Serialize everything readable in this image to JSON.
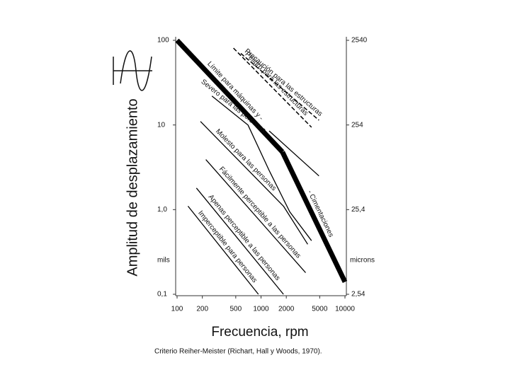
{
  "chart_data": {
    "type": "line",
    "y_title": "Amplitud de desplazamiento",
    "x_title": "Frecuencia, rpm",
    "caption": "Criterio Reiher-Meister (Richart, Hall y Woods, 1970).",
    "log_x": true,
    "log_y": true,
    "grid": false,
    "xlim": [
      100,
      10000
    ],
    "xticks": [
      100,
      200,
      500,
      1000,
      2000,
      5000,
      10000
    ],
    "ylim": [
      0.1,
      100
    ],
    "yticks": [
      100,
      10,
      {
        "value": 1,
        "label": "1,0"
      },
      {
        "value": 0.1,
        "label": "0,1"
      }
    ],
    "y_unit": "mils",
    "y2lim": [
      2.54,
      2540
    ],
    "y2ticks": [
      2540,
      254,
      {
        "value": 25.4,
        "label": "25,4"
      },
      {
        "value": 2.54,
        "label": "2,54"
      }
    ],
    "y2_unit": "microns",
    "series": [
      {
        "name": "Peligro para las estructuras",
        "color": "#000",
        "dash": true,
        "width": 1.5,
        "x": [
          470,
          4000
        ],
        "values": [
          81,
          9.4
        ]
      },
      {
        "name": "Precaución para las estructuras",
        "color": "#000",
        "dash": true,
        "width": 1.5,
        "x": [
          575,
          4900
        ],
        "values": [
          70,
          11.4
        ]
      },
      {
        "name": "Límite para máquinas y -",
        "color": "#000",
        "width": 7,
        "x": [
          100,
          1800
        ],
        "values": [
          100,
          4.8
        ]
      },
      {
        "name": "- Cimentaciones",
        "color": "#000",
        "width": 7,
        "x": [
          1800,
          10000
        ],
        "values": [
          4.8,
          0.14
        ]
      },
      {
        "color": "#000",
        "width": 1.3,
        "x": [
          1250,
          4900
        ],
        "values": [
          8.5,
          2.5
        ]
      },
      {
        "name": "Severo para las personas",
        "color": "#000",
        "width": 1.3,
        "x": [
          260,
          700,
          1250,
          2200,
          4000
        ],
        "values": [
          22,
          10,
          2.9,
          0.94,
          0.43
        ]
      },
      {
        "name": "Molesto para las personas",
        "color": "#000",
        "width": 1.3,
        "x": [
          190,
          1850,
          3600
        ],
        "values": [
          11,
          1.1,
          0.39
        ]
      },
      {
        "name": "Fácilmente perceptible a las personas",
        "color": "#000",
        "width": 1.3,
        "x": [
          220,
          3400
        ],
        "values": [
          3.9,
          0.18
        ]
      },
      {
        "name": "Apenas perceptible a las personas",
        "color": "#000",
        "width": 1.3,
        "x": [
          170,
          1850
        ],
        "values": [
          1.8,
          0.1
        ]
      },
      {
        "name": "Imperceptible para personas",
        "color": "#000",
        "width": 1.3,
        "x": [
          135,
          930
        ],
        "values": [
          1.1,
          0.1
        ]
      }
    ]
  }
}
